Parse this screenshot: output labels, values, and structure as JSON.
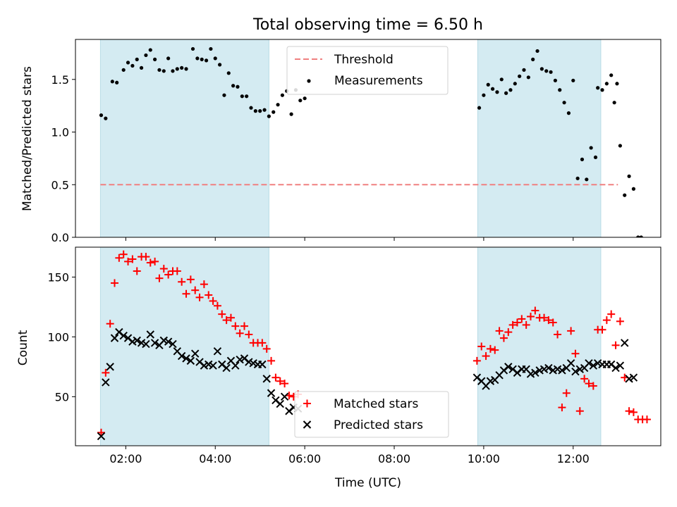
{
  "chart_data": [
    {
      "type": "scatter",
      "title": "Total observing time = 6.50 h",
      "ylabel": "Matched/Predicted stars",
      "xlabel": "",
      "xlim": [
        0.875,
        13.958
      ],
      "ylim": [
        0,
        1.88
      ],
      "yticks": [
        0.0,
        0.5,
        1.0,
        1.5
      ],
      "ytick_labels": [
        "0.0",
        "0.5",
        "1.0",
        "1.5"
      ],
      "xticks": [
        2,
        4,
        6,
        8,
        10,
        12
      ],
      "shaded_intervals": [
        [
          1.433,
          5.2
        ],
        [
          9.867,
          12.617
        ]
      ],
      "shade_color": "#d4ebf2",
      "threshold": {
        "name": "Threshold",
        "y": 0.5,
        "x_range": [
          1.433,
          13.0
        ],
        "color": "#f08080"
      },
      "legend": {
        "position": "top-center"
      },
      "series": [
        {
          "name": "Measurements",
          "color": "#000000",
          "marker": "dot",
          "points": [
            [
              1.45,
              1.16
            ],
            [
              1.55,
              1.13
            ],
            [
              1.7,
              1.48
            ],
            [
              1.8,
              1.47
            ],
            [
              1.95,
              1.59
            ],
            [
              2.05,
              1.66
            ],
            [
              2.15,
              1.63
            ],
            [
              2.25,
              1.69
            ],
            [
              2.35,
              1.61
            ],
            [
              2.45,
              1.73
            ],
            [
              2.55,
              1.78
            ],
            [
              2.65,
              1.69
            ],
            [
              2.75,
              1.59
            ],
            [
              2.85,
              1.58
            ],
            [
              2.95,
              1.7
            ],
            [
              3.05,
              1.58
            ],
            [
              3.15,
              1.6
            ],
            [
              3.25,
              1.61
            ],
            [
              3.35,
              1.6
            ],
            [
              3.5,
              1.79
            ],
            [
              3.6,
              1.7
            ],
            [
              3.7,
              1.69
            ],
            [
              3.8,
              1.68
            ],
            [
              3.9,
              1.79
            ],
            [
              4.0,
              1.7
            ],
            [
              4.1,
              1.64
            ],
            [
              4.2,
              1.35
            ],
            [
              4.3,
              1.56
            ],
            [
              4.4,
              1.44
            ],
            [
              4.5,
              1.43
            ],
            [
              4.6,
              1.34
            ],
            [
              4.7,
              1.34
            ],
            [
              4.8,
              1.23
            ],
            [
              4.9,
              1.2
            ],
            [
              5.0,
              1.2
            ],
            [
              5.1,
              1.21
            ],
            [
              5.2,
              1.15
            ],
            [
              5.3,
              1.19
            ],
            [
              5.4,
              1.26
            ],
            [
              5.5,
              1.35
            ],
            [
              5.6,
              1.39
            ],
            [
              5.7,
              1.17
            ],
            [
              5.8,
              1.4
            ],
            [
              5.9,
              1.3
            ],
            [
              6.0,
              1.32
            ],
            [
              9.9,
              1.23
            ],
            [
              10.0,
              1.35
            ],
            [
              10.1,
              1.45
            ],
            [
              10.2,
              1.41
            ],
            [
              10.3,
              1.38
            ],
            [
              10.4,
              1.5
            ],
            [
              10.5,
              1.37
            ],
            [
              10.6,
              1.4
            ],
            [
              10.7,
              1.46
            ],
            [
              10.8,
              1.53
            ],
            [
              10.9,
              1.59
            ],
            [
              11.0,
              1.52
            ],
            [
              11.1,
              1.69
            ],
            [
              11.2,
              1.77
            ],
            [
              11.3,
              1.6
            ],
            [
              11.4,
              1.58
            ],
            [
              11.5,
              1.57
            ],
            [
              11.6,
              1.49
            ],
            [
              11.7,
              1.4
            ],
            [
              11.8,
              1.28
            ],
            [
              11.9,
              1.18
            ],
            [
              12.0,
              1.49
            ],
            [
              12.1,
              0.56
            ],
            [
              12.2,
              0.74
            ],
            [
              12.3,
              0.55
            ],
            [
              12.4,
              0.85
            ],
            [
              12.5,
              0.76
            ],
            [
              12.55,
              1.42
            ],
            [
              12.65,
              1.4
            ],
            [
              12.75,
              1.46
            ],
            [
              12.85,
              1.54
            ],
            [
              12.92,
              1.28
            ],
            [
              12.98,
              1.46
            ],
            [
              13.05,
              0.87
            ],
            [
              13.15,
              0.4
            ],
            [
              13.25,
              0.58
            ],
            [
              13.35,
              0.46
            ],
            [
              13.45,
              0.0
            ],
            [
              13.52,
              0.0
            ]
          ]
        }
      ]
    },
    {
      "type": "scatter",
      "title": "",
      "xlabel": "Time (UTC)",
      "ylabel": "Count",
      "xlim": [
        0.875,
        13.958
      ],
      "ylim": [
        9,
        175
      ],
      "yticks": [
        50,
        100,
        150
      ],
      "ytick_labels": [
        "50",
        "100",
        "150"
      ],
      "xticks": [
        2,
        4,
        6,
        8,
        10,
        12
      ],
      "xtick_labels": [
        "02:00",
        "04:00",
        "06:00",
        "08:00",
        "10:00",
        "12:00"
      ],
      "shaded_intervals": [
        [
          1.433,
          5.2
        ],
        [
          9.867,
          12.617
        ]
      ],
      "shade_color": "#d4ebf2",
      "legend": {
        "position": "bottom-center"
      },
      "series": [
        {
          "name": "Matched stars",
          "color": "#ff0000",
          "marker": "plus",
          "points": [
            [
              1.45,
              20
            ],
            [
              1.55,
              70
            ],
            [
              1.65,
              111
            ],
            [
              1.75,
              145
            ],
            [
              1.85,
              166
            ],
            [
              1.95,
              169
            ],
            [
              2.05,
              163
            ],
            [
              2.15,
              165
            ],
            [
              2.25,
              155
            ],
            [
              2.35,
              167
            ],
            [
              2.45,
              167
            ],
            [
              2.55,
              162
            ],
            [
              2.65,
              163
            ],
            [
              2.75,
              149
            ],
            [
              2.85,
              157
            ],
            [
              2.95,
              152
            ],
            [
              3.05,
              155
            ],
            [
              3.15,
              155
            ],
            [
              3.25,
              146
            ],
            [
              3.35,
              136
            ],
            [
              3.45,
              148
            ],
            [
              3.55,
              139
            ],
            [
              3.65,
              133
            ],
            [
              3.75,
              144
            ],
            [
              3.85,
              135
            ],
            [
              3.95,
              130
            ],
            [
              4.05,
              126
            ],
            [
              4.15,
              119
            ],
            [
              4.25,
              114
            ],
            [
              4.35,
              116
            ],
            [
              4.45,
              109
            ],
            [
              4.55,
              103
            ],
            [
              4.65,
              109
            ],
            [
              4.75,
              102
            ],
            [
              4.85,
              95
            ],
            [
              4.95,
              95
            ],
            [
              5.05,
              95
            ],
            [
              5.15,
              90
            ],
            [
              5.25,
              80
            ],
            [
              5.35,
              66
            ],
            [
              5.45,
              63
            ],
            [
              5.55,
              61
            ],
            [
              5.65,
              51
            ],
            [
              5.75,
              50
            ],
            [
              5.85,
              52
            ],
            [
              9.85,
              80
            ],
            [
              9.95,
              92
            ],
            [
              10.05,
              84
            ],
            [
              10.15,
              90
            ],
            [
              10.25,
              89
            ],
            [
              10.35,
              105
            ],
            [
              10.45,
              99
            ],
            [
              10.55,
              104
            ],
            [
              10.65,
              110
            ],
            [
              10.75,
              112
            ],
            [
              10.85,
              115
            ],
            [
              10.95,
              110
            ],
            [
              11.05,
              117
            ],
            [
              11.15,
              122
            ],
            [
              11.25,
              116
            ],
            [
              11.35,
              116
            ],
            [
              11.45,
              114
            ],
            [
              11.55,
              112
            ],
            [
              11.65,
              102
            ],
            [
              11.75,
              41
            ],
            [
              11.85,
              53
            ],
            [
              11.95,
              105
            ],
            [
              12.05,
              86
            ],
            [
              12.15,
              38
            ],
            [
              12.25,
              65
            ],
            [
              12.35,
              61
            ],
            [
              12.45,
              59
            ],
            [
              12.55,
              106
            ],
            [
              12.65,
              106
            ],
            [
              12.75,
              114
            ],
            [
              12.85,
              119
            ],
            [
              12.95,
              93
            ],
            [
              13.05,
              113
            ],
            [
              13.15,
              66
            ],
            [
              13.25,
              38
            ],
            [
              13.35,
              37
            ],
            [
              13.45,
              31
            ],
            [
              13.55,
              31
            ],
            [
              13.65,
              31
            ]
          ]
        },
        {
          "name": "Predicted stars",
          "color": "#000000",
          "marker": "x",
          "points": [
            [
              1.45,
              17
            ],
            [
              1.55,
              62
            ],
            [
              1.65,
              75
            ],
            [
              1.75,
              99
            ],
            [
              1.85,
              104
            ],
            [
              1.95,
              101
            ],
            [
              2.05,
              99
            ],
            [
              2.15,
              96
            ],
            [
              2.25,
              97
            ],
            [
              2.35,
              95
            ],
            [
              2.45,
              94
            ],
            [
              2.55,
              102
            ],
            [
              2.65,
              95
            ],
            [
              2.75,
              93
            ],
            [
              2.85,
              97
            ],
            [
              2.95,
              96
            ],
            [
              3.05,
              94
            ],
            [
              3.15,
              88
            ],
            [
              3.25,
              84
            ],
            [
              3.35,
              82
            ],
            [
              3.45,
              80
            ],
            [
              3.55,
              86
            ],
            [
              3.65,
              79
            ],
            [
              3.75,
              76
            ],
            [
              3.85,
              77
            ],
            [
              3.95,
              76
            ],
            [
              4.05,
              88
            ],
            [
              4.15,
              77
            ],
            [
              4.25,
              74
            ],
            [
              4.35,
              80
            ],
            [
              4.45,
              76
            ],
            [
              4.55,
              81
            ],
            [
              4.65,
              82
            ],
            [
              4.75,
              79
            ],
            [
              4.85,
              78
            ],
            [
              4.95,
              77
            ],
            [
              5.05,
              77
            ],
            [
              5.15,
              65
            ],
            [
              5.25,
              53
            ],
            [
              5.35,
              47
            ],
            [
              5.45,
              44
            ],
            [
              5.55,
              50
            ],
            [
              5.65,
              38
            ],
            [
              5.75,
              41
            ],
            [
              5.85,
              40
            ],
            [
              9.85,
              66
            ],
            [
              9.95,
              63
            ],
            [
              10.05,
              59
            ],
            [
              10.15,
              63
            ],
            [
              10.25,
              64
            ],
            [
              10.35,
              68
            ],
            [
              10.45,
              72
            ],
            [
              10.55,
              75
            ],
            [
              10.65,
              73
            ],
            [
              10.75,
              70
            ],
            [
              10.85,
              73
            ],
            [
              10.95,
              73
            ],
            [
              11.05,
              69
            ],
            [
              11.15,
              70
            ],
            [
              11.25,
              72
            ],
            [
              11.35,
              73
            ],
            [
              11.45,
              74
            ],
            [
              11.55,
              72
            ],
            [
              11.65,
              73
            ],
            [
              11.75,
              72
            ],
            [
              11.85,
              74
            ],
            [
              11.95,
              78
            ],
            [
              12.05,
              71
            ],
            [
              12.15,
              73
            ],
            [
              12.25,
              74
            ],
            [
              12.35,
              78
            ],
            [
              12.45,
              76
            ],
            [
              12.55,
              78
            ],
            [
              12.65,
              77
            ],
            [
              12.75,
              77
            ],
            [
              12.85,
              77
            ],
            [
              12.95,
              74
            ],
            [
              13.05,
              76
            ],
            [
              13.15,
              95
            ],
            [
              13.25,
              65
            ],
            [
              13.35,
              66
            ]
          ]
        }
      ]
    }
  ]
}
